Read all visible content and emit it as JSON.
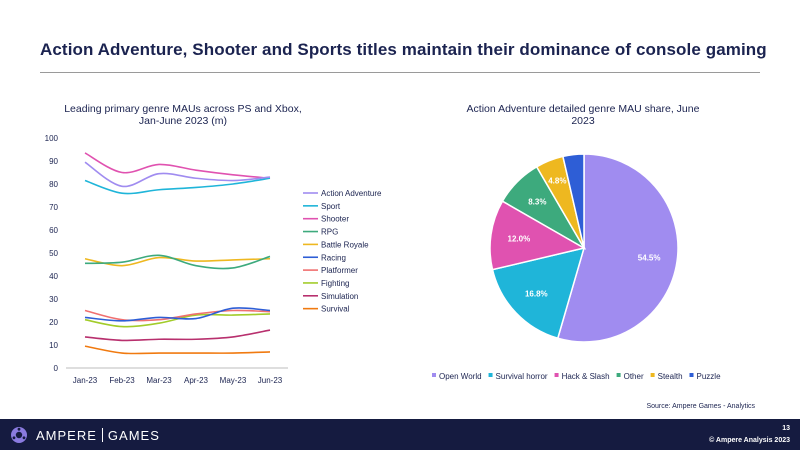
{
  "page": {
    "title": "Action Adventure, Shooter and Sports titles maintain their dominance of console gaming",
    "source": "Source: Ampere Games - Analytics",
    "brand_left": "AMPERE",
    "brand_right": "GAMES",
    "page_number": "13",
    "copyright": "© Ampere Analysis 2023"
  },
  "chart_data": [
    {
      "type": "line",
      "title": [
        "Leading primary genre MAUs across PS and Xbox,",
        "Jan-June 2023 (m)"
      ],
      "xlabel": "",
      "ylabel": "",
      "categories": [
        "Jan-23",
        "Feb-23",
        "Mar-23",
        "Apr-23",
        "May-23",
        "Jun-23"
      ],
      "ylim": [
        0,
        100
      ],
      "yticks": [
        "0",
        "10",
        "20",
        "30",
        "40",
        "50",
        "60",
        "70",
        "80",
        "90",
        "100"
      ],
      "legend_position": "right",
      "series": [
        {
          "name": "Action Adventure",
          "color": "#a08cf0",
          "values": [
            89.5,
            79,
            84.5,
            82.5,
            81.5,
            83
          ]
        },
        {
          "name": "Sport",
          "color": "#1fb5d9",
          "values": [
            81.5,
            76,
            77.5,
            78.5,
            80,
            82.5
          ]
        },
        {
          "name": "Shooter",
          "color": "#e052b0",
          "values": [
            93.5,
            85,
            88.5,
            86,
            84,
            82.5
          ]
        },
        {
          "name": "RPG",
          "color": "#3daa7d",
          "values": [
            45.5,
            46,
            49,
            44.5,
            43.5,
            48.5
          ]
        },
        {
          "name": "Battle Royale",
          "color": "#eeb820",
          "values": [
            47.5,
            44.5,
            48,
            46.5,
            47,
            47.5
          ]
        },
        {
          "name": "Racing",
          "color": "#2e5ed6",
          "values": [
            22,
            20.5,
            22,
            21.5,
            26,
            25
          ]
        },
        {
          "name": "Platformer",
          "color": "#f07070",
          "values": [
            25,
            21,
            21,
            23.5,
            25,
            24.5
          ]
        },
        {
          "name": "Fighting",
          "color": "#a2cc2a",
          "values": [
            21,
            18,
            19.5,
            23,
            23,
            23.5
          ]
        },
        {
          "name": "Simulation",
          "color": "#b8306e",
          "values": [
            13.5,
            12,
            12.5,
            12.5,
            13.5,
            16.5
          ]
        },
        {
          "name": "Survival",
          "color": "#f07a10",
          "values": [
            9.5,
            6.5,
            6.5,
            6.5,
            6.5,
            7
          ]
        }
      ]
    },
    {
      "type": "pie",
      "title": [
        "Action Adventure detailed genre MAU share, June",
        "2023"
      ],
      "legend_position": "bottom",
      "slices": [
        {
          "name": "Open World",
          "value": 54.5,
          "label": "54.5%",
          "color": "#a08cf0"
        },
        {
          "name": "Survival horror",
          "value": 16.8,
          "label": "16.8%",
          "color": "#1fb5d9"
        },
        {
          "name": "Hack & Slash",
          "value": 12.0,
          "label": "12.0%",
          "color": "#e052b0"
        },
        {
          "name": "Other",
          "value": 8.3,
          "label": "8.3%",
          "color": "#3daa7d"
        },
        {
          "name": "Stealth",
          "value": 4.8,
          "label": "4.8%",
          "color": "#eeb820"
        },
        {
          "name": "Puzzle",
          "value": 3.6,
          "label": "",
          "color": "#2e5ed6"
        }
      ]
    }
  ]
}
